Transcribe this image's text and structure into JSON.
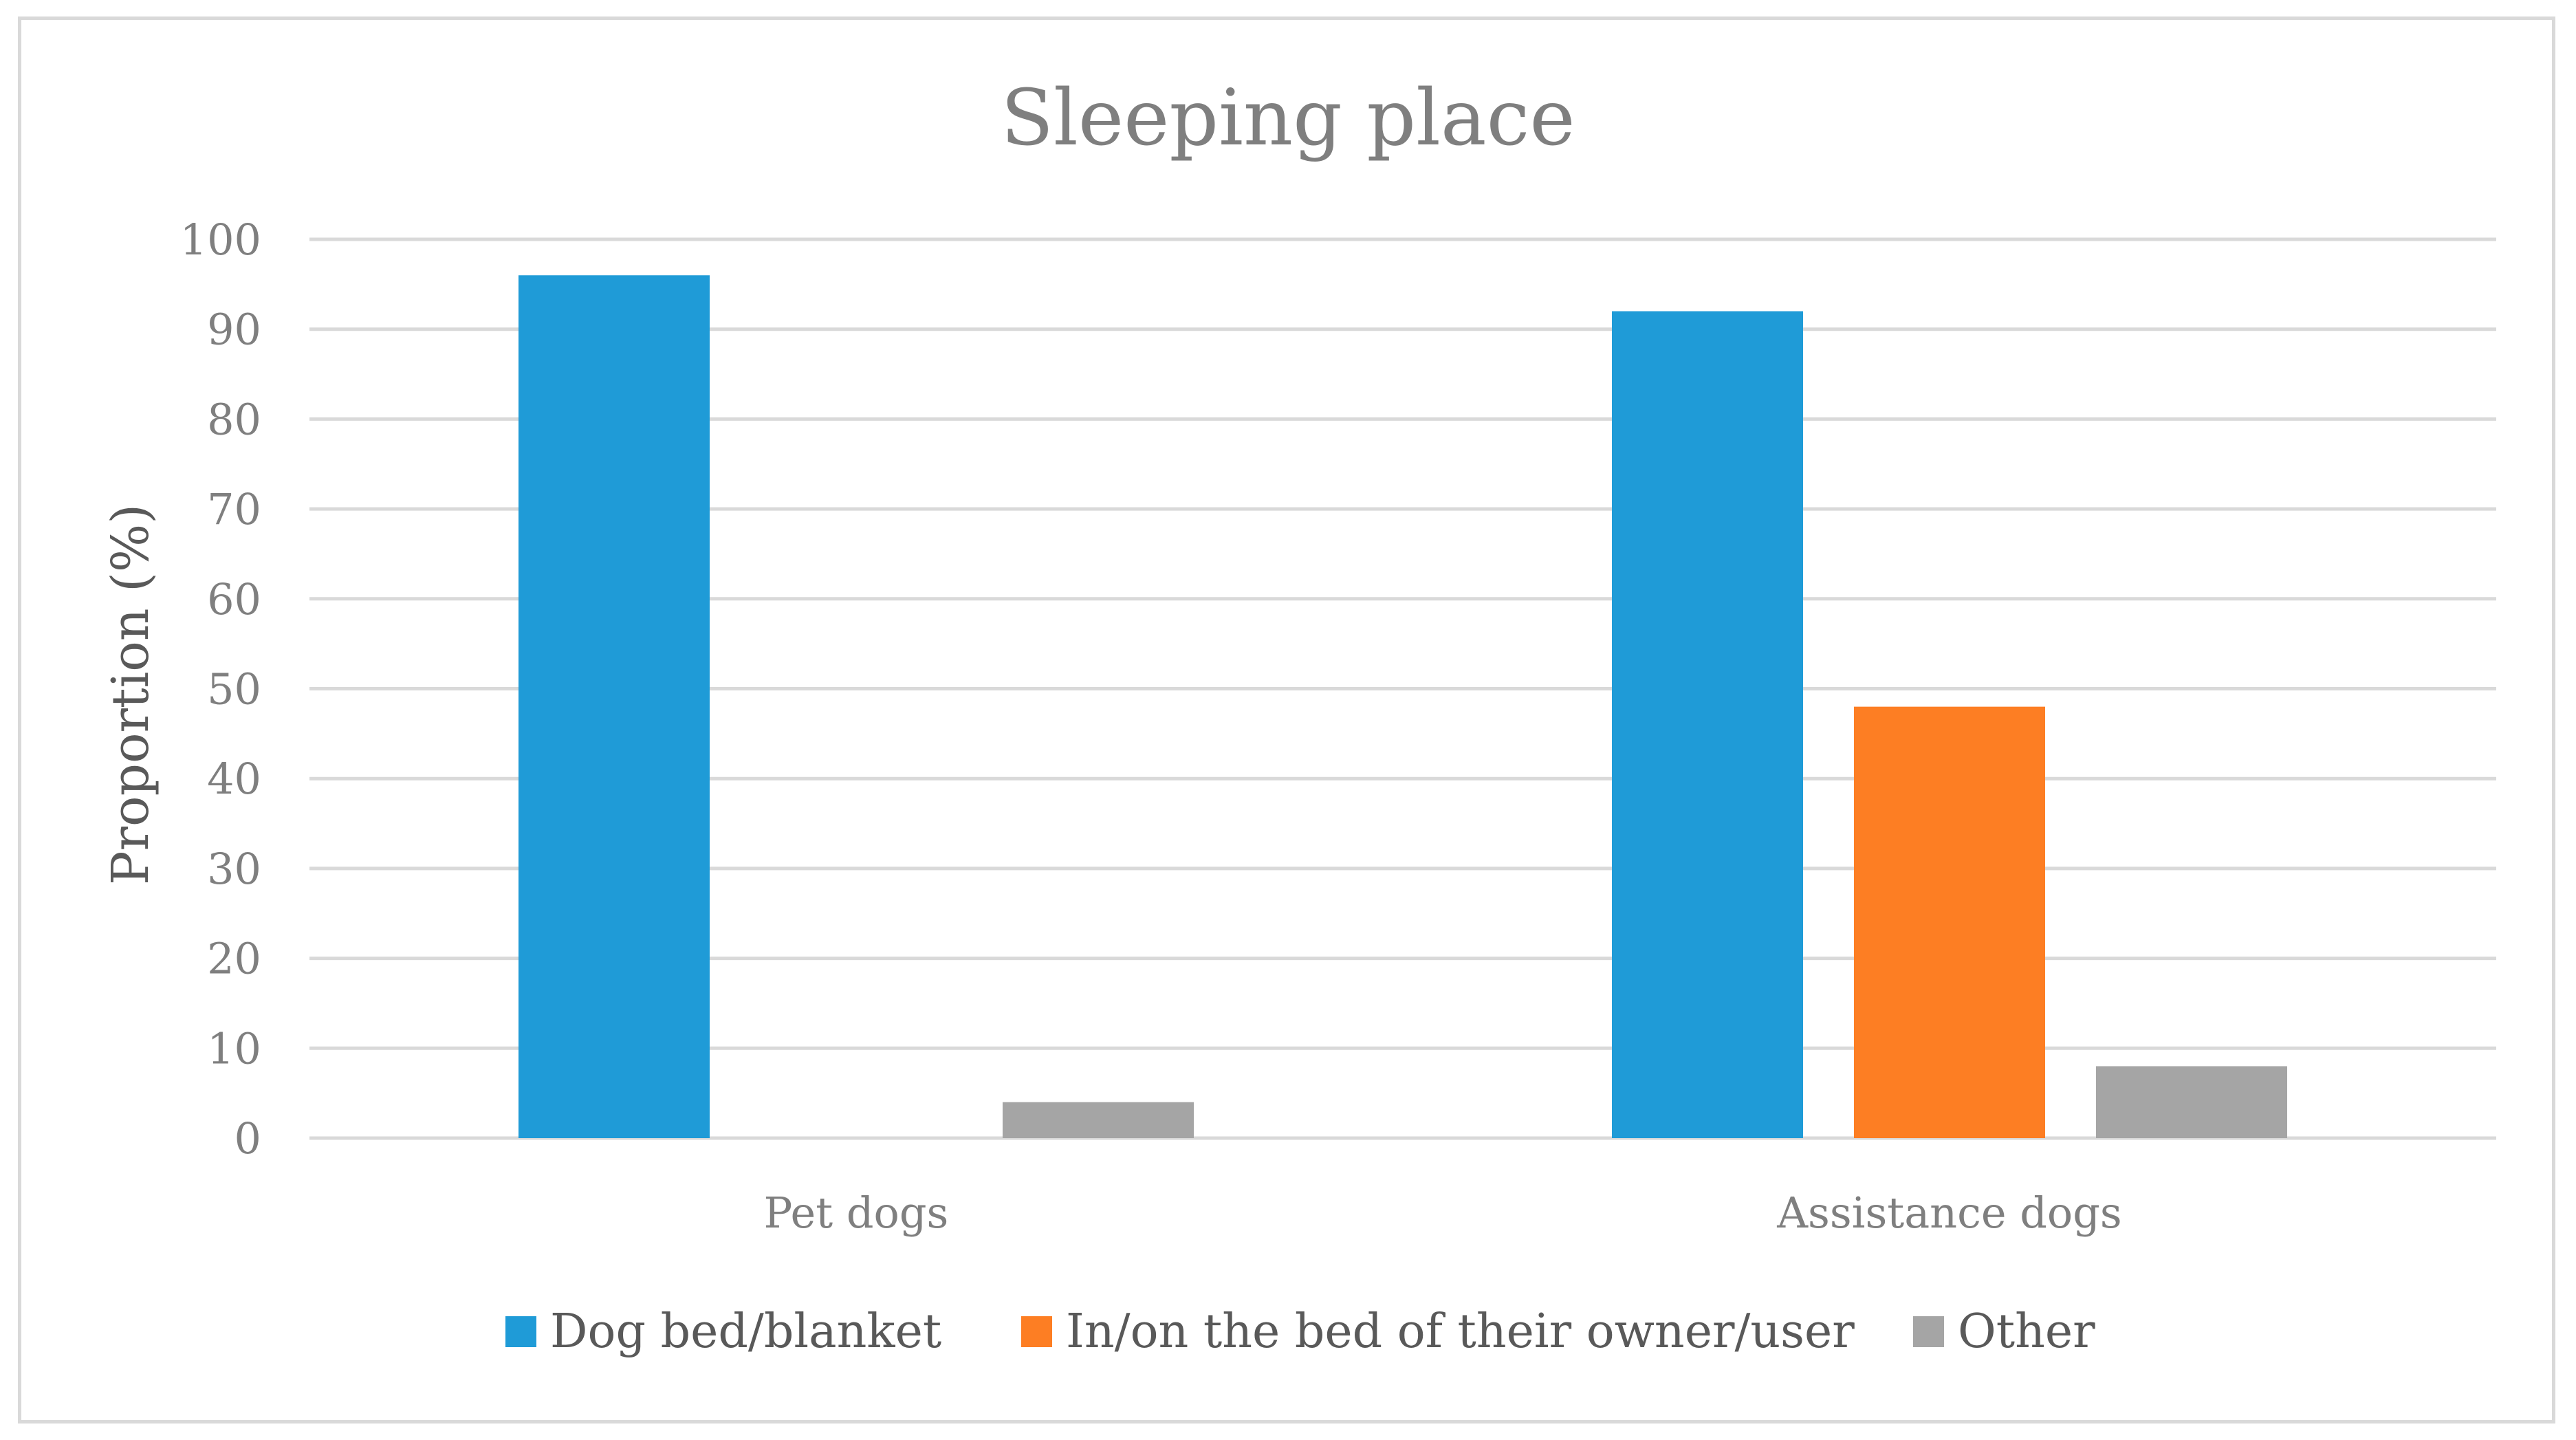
{
  "chart_data": {
    "type": "bar",
    "title": "Sleeping place",
    "xlabel": "",
    "ylabel": "Proportion (%)",
    "ylim": [
      0,
      100
    ],
    "yticks": [
      0,
      10,
      20,
      30,
      40,
      50,
      60,
      70,
      80,
      90,
      100
    ],
    "categories": [
      "Pet dogs",
      "Assistance dogs"
    ],
    "series": [
      {
        "name": "Dog bed/blanket",
        "color": "#1f9bd7",
        "values": [
          96,
          92
        ]
      },
      {
        "name": "In/on the bed of their owner/user",
        "color": "#fd7e23",
        "values": [
          0,
          48
        ]
      },
      {
        "name": "Other",
        "color": "#a5a5a5",
        "values": [
          4,
          8
        ]
      }
    ],
    "grid": true,
    "legend_position": "bottom"
  }
}
